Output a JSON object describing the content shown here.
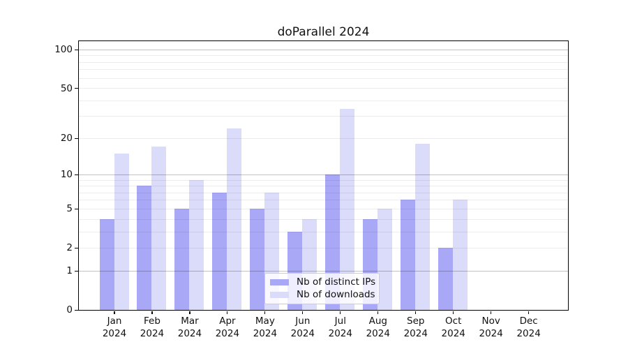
{
  "title": "doParallel 2024",
  "colors": {
    "ips_bar": "#a8a8f7",
    "downloads_bar": "#dbdbfa",
    "grid_major": "rgba(0,0,0,0.24)",
    "grid_minor": "rgba(0,0,0,0.07)",
    "axis": "#000000",
    "text": "#111111"
  },
  "legend": {
    "items": [
      {
        "label": "Nb of distinct IPs",
        "color_key": "ips_bar"
      },
      {
        "label": "Nb of downloads",
        "color_key": "downloads_bar"
      }
    ]
  },
  "x_axis": {
    "months": [
      "Jan",
      "Feb",
      "Mar",
      "Apr",
      "May",
      "Jun",
      "Jul",
      "Aug",
      "Sep",
      "Oct",
      "Nov",
      "Dec"
    ],
    "year": "2024"
  },
  "y_axis": {
    "ticks": [
      100,
      50,
      20,
      10,
      5,
      2,
      1,
      0
    ],
    "scale": "log1p",
    "minor_gridlines": [
      2,
      3,
      4,
      5,
      6,
      7,
      8,
      9,
      20,
      30,
      40,
      50,
      60,
      70,
      80,
      90
    ],
    "major_gridlines": [
      1,
      10,
      100
    ]
  },
  "chart_data": {
    "type": "bar",
    "title": "doParallel 2024",
    "categories": [
      "Jan 2024",
      "Feb 2024",
      "Mar 2024",
      "Apr 2024",
      "May 2024",
      "Jun 2024",
      "Jul 2024",
      "Aug 2024",
      "Sep 2024",
      "Oct 2024",
      "Nov 2024",
      "Dec 2024"
    ],
    "series": [
      {
        "name": "Nb of distinct IPs",
        "values": [
          4,
          8,
          5,
          7,
          5,
          3,
          10,
          4,
          6,
          2,
          0,
          0
        ]
      },
      {
        "name": "Nb of downloads",
        "values": [
          15,
          17,
          9,
          24,
          7,
          4,
          34,
          5,
          18,
          6,
          0,
          0
        ]
      }
    ],
    "yscale": "log1p",
    "yticks": [
      0,
      1,
      2,
      5,
      10,
      20,
      50,
      100
    ],
    "ylim": [
      0,
      117
    ],
    "grid": "major+minor, drawn above bars",
    "legend_position": "lower center"
  }
}
